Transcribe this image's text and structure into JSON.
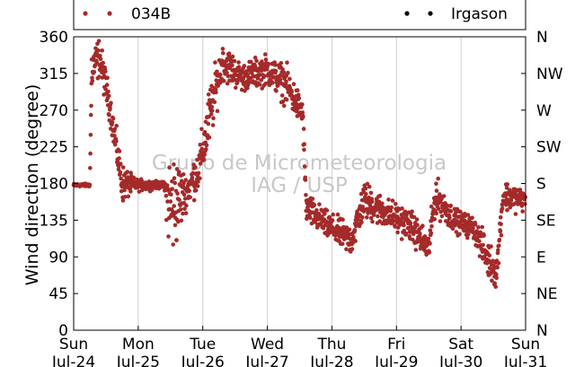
{
  "chart_data": {
    "type": "scatter",
    "ylabel": "Wind direction (degree)",
    "ylim": [
      0,
      360
    ],
    "yticks": [
      0,
      45,
      90,
      135,
      180,
      225,
      270,
      315,
      360
    ],
    "right_axis_ticks": [
      {
        "value": 0,
        "label": "N"
      },
      {
        "value": 45,
        "label": "NE"
      },
      {
        "value": 90,
        "label": "E"
      },
      {
        "value": 135,
        "label": "SE"
      },
      {
        "value": 180,
        "label": "S"
      },
      {
        "value": 225,
        "label": "SW"
      },
      {
        "value": 270,
        "label": "W"
      },
      {
        "value": 315,
        "label": "NW"
      },
      {
        "value": 360,
        "label": "N"
      }
    ],
    "xlim": [
      "2016-07-24 00:00",
      "2016-07-31 00:00"
    ],
    "xticks": [
      {
        "day": "Sun",
        "date": "Jul-24"
      },
      {
        "day": "Mon",
        "date": "Jul-25"
      },
      {
        "day": "Tue",
        "date": "Jul-26"
      },
      {
        "day": "Wed",
        "date": "Jul-27"
      },
      {
        "day": "Thu",
        "date": "Jul-28"
      },
      {
        "day": "Fri",
        "date": "Jul-29"
      },
      {
        "day": "Sat",
        "date": "Jul-30"
      },
      {
        "day": "Sun",
        "date": "Jul-31"
      }
    ],
    "grid": "vertical",
    "legend_position": "top",
    "watermark": [
      "Grupo de Micrometeorologia",
      "IAG / USP"
    ],
    "series": [
      {
        "name": "034B",
        "color": "#a52a2a",
        "profile": [
          {
            "day": 0.0,
            "dir": 178,
            "spread": 2
          },
          {
            "day": 0.25,
            "dir": 178,
            "spread": 2
          },
          {
            "day": 0.28,
            "dir": 320,
            "spread": 30
          },
          {
            "day": 0.4,
            "dir": 335,
            "spread": 25
          },
          {
            "day": 0.55,
            "dir": 280,
            "spread": 20
          },
          {
            "day": 0.75,
            "dir": 180,
            "spread": 25
          },
          {
            "day": 0.95,
            "dir": 178,
            "spread": 8
          },
          {
            "day": 1.4,
            "dir": 178,
            "spread": 4
          },
          {
            "day": 1.5,
            "dir": 150,
            "spread": 80
          },
          {
            "day": 1.75,
            "dir": 170,
            "spread": 20
          },
          {
            "day": 1.95,
            "dir": 200,
            "spread": 30
          },
          {
            "day": 2.1,
            "dir": 260,
            "spread": 40
          },
          {
            "day": 2.3,
            "dir": 330,
            "spread": 25
          },
          {
            "day": 2.6,
            "dir": 310,
            "spread": 18
          },
          {
            "day": 3.0,
            "dir": 320,
            "spread": 20
          },
          {
            "day": 3.3,
            "dir": 300,
            "spread": 25
          },
          {
            "day": 3.55,
            "dir": 265,
            "spread": 20
          },
          {
            "day": 3.6,
            "dir": 150,
            "spread": 20
          },
          {
            "day": 3.9,
            "dir": 130,
            "spread": 18
          },
          {
            "day": 4.3,
            "dir": 110,
            "spread": 20
          },
          {
            "day": 4.5,
            "dir": 160,
            "spread": 25
          },
          {
            "day": 4.8,
            "dir": 145,
            "spread": 20
          },
          {
            "day": 5.2,
            "dir": 130,
            "spread": 20
          },
          {
            "day": 5.5,
            "dir": 100,
            "spread": 20
          },
          {
            "day": 5.6,
            "dir": 165,
            "spread": 25
          },
          {
            "day": 5.9,
            "dir": 135,
            "spread": 15
          },
          {
            "day": 6.2,
            "dir": 125,
            "spread": 15
          },
          {
            "day": 6.4,
            "dir": 90,
            "spread": 25
          },
          {
            "day": 6.55,
            "dir": 70,
            "spread": 20
          },
          {
            "day": 6.65,
            "dir": 165,
            "spread": 20
          },
          {
            "day": 7.0,
            "dir": 160,
            "spread": 15
          }
        ]
      },
      {
        "name": "Irgason",
        "color": "#000000",
        "profile": []
      }
    ]
  }
}
